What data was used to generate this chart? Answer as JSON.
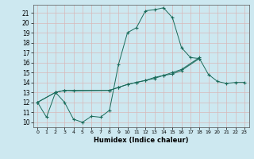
{
  "xlabel": "Humidex (Indice chaleur)",
  "xlim": [
    -0.5,
    23.5
  ],
  "ylim": [
    9.5,
    21.8
  ],
  "xticks": [
    0,
    1,
    2,
    3,
    4,
    5,
    6,
    7,
    8,
    9,
    10,
    11,
    12,
    13,
    14,
    15,
    16,
    17,
    18,
    19,
    20,
    21,
    22,
    23
  ],
  "yticks": [
    10,
    11,
    12,
    13,
    14,
    15,
    16,
    17,
    18,
    19,
    20,
    21
  ],
  "bg_color": "#cde8f0",
  "line_color": "#1a6b5a",
  "series": [
    {
      "x": [
        0,
        1,
        2,
        3,
        4,
        5,
        6,
        7,
        8,
        9,
        10,
        11,
        12,
        13,
        14,
        15,
        16,
        17,
        18
      ],
      "y": [
        12.0,
        10.5,
        13.0,
        12.0,
        10.3,
        10.0,
        10.6,
        10.5,
        11.2,
        15.8,
        19.0,
        19.5,
        21.2,
        21.3,
        21.5,
        20.5,
        17.5,
        16.5,
        16.4
      ]
    },
    {
      "x": [
        0,
        2,
        3,
        4,
        8,
        9,
        10,
        11,
        12,
        13,
        14,
        15,
        16,
        18
      ],
      "y": [
        12.0,
        13.0,
        13.2,
        13.15,
        13.2,
        13.5,
        13.8,
        14.0,
        14.2,
        14.5,
        14.7,
        15.0,
        15.3,
        16.5
      ]
    },
    {
      "x": [
        0,
        2,
        3,
        8,
        9,
        10,
        11,
        12,
        13,
        14,
        15,
        16,
        18,
        19,
        20,
        21,
        22,
        23
      ],
      "y": [
        12.0,
        13.0,
        13.2,
        13.2,
        13.5,
        13.8,
        14.0,
        14.2,
        14.4,
        14.7,
        14.85,
        15.2,
        16.4,
        14.8,
        14.1,
        13.9,
        14.0,
        14.0
      ]
    }
  ]
}
